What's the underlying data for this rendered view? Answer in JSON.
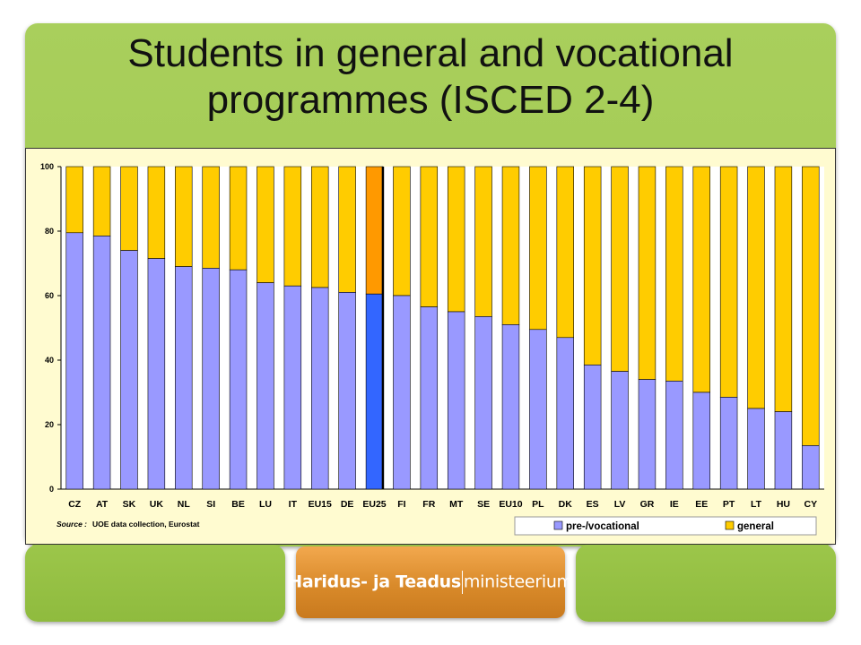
{
  "title": "Students in general and vocational programmes (ISCED 2-4)",
  "logo": {
    "part1": "Haridus- ja Teadus",
    "part2": "ministeerium"
  },
  "colors": {
    "vocational": "#9999ff",
    "general": "#ffcc00",
    "highlight": "#3366ff",
    "highlight_general": "#ff9900",
    "plot_bg": "#ffffff",
    "frame_bg": "#fffbd0"
  },
  "chart_data": {
    "type": "bar",
    "stacked": true,
    "categories": [
      "CZ",
      "AT",
      "SK",
      "UK",
      "NL",
      "SI",
      "BE",
      "LU",
      "IT",
      "EU15",
      "DE",
      "EU25",
      "FI",
      "FR",
      "MT",
      "SE",
      "EU10",
      "PL",
      "DK",
      "ES",
      "LV",
      "GR",
      "IE",
      "EE",
      "PT",
      "LT",
      "HU",
      "CY"
    ],
    "series": [
      {
        "name": "pre-/vocational",
        "values": [
          79.5,
          78.5,
          74,
          71.5,
          69,
          68.5,
          68,
          64,
          63,
          62.5,
          61,
          60.5,
          60,
          56.5,
          55,
          53.5,
          51,
          49.5,
          47,
          38.5,
          36.5,
          34,
          33.5,
          30,
          28.5,
          25,
          24,
          13.5
        ]
      },
      {
        "name": "general",
        "values": [
          20.5,
          21.5,
          26,
          28.5,
          31,
          31.5,
          32,
          36,
          37,
          37.5,
          39,
          39.5,
          40,
          43.5,
          45,
          46.5,
          49,
          50.5,
          53,
          61.5,
          63.5,
          66,
          66.5,
          70,
          71.5,
          75,
          76,
          86.5
        ]
      }
    ],
    "highlight_category": "EU25",
    "ylim": [
      0,
      100
    ],
    "yticks": [
      "0",
      "20",
      "40",
      "60",
      "80",
      "100"
    ],
    "source_label": "Source :",
    "source_text": "UOE data collection, Eurostat",
    "legend_position": "bottom-right"
  }
}
